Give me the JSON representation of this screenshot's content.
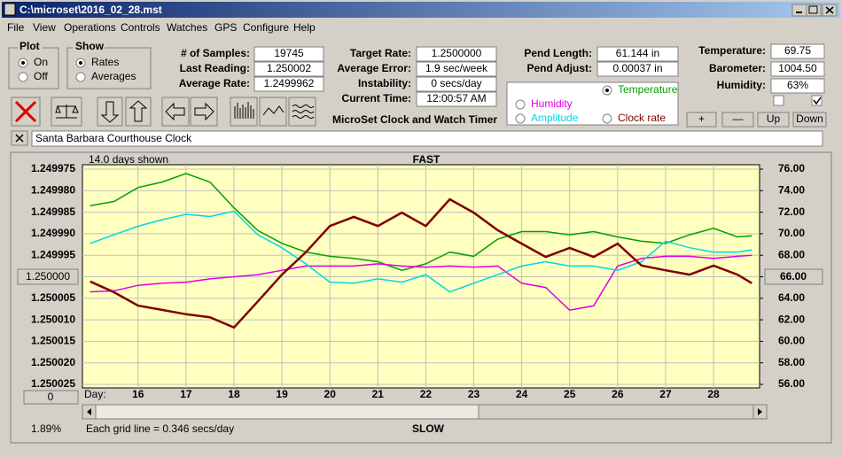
{
  "window": {
    "title": "C:\\microset\\2016_02_28.mst"
  },
  "menu": [
    "File",
    "View",
    "Operations",
    "Controls",
    "Watches",
    "GPS",
    "Configure",
    "Help"
  ],
  "plot_group": {
    "title": "Plot",
    "options": [
      "On",
      "Off"
    ],
    "selected": 0
  },
  "show_group": {
    "title": "Show",
    "options": [
      "Rates",
      "Averages"
    ],
    "selected": 0
  },
  "fields": [
    {
      "label": "# of Samples:",
      "value": "19745"
    },
    {
      "label": "Last Reading:",
      "value": "1.250002"
    },
    {
      "label": "Average Rate:",
      "value": "1.2499962"
    },
    {
      "label": "Target Rate:",
      "value": "1.2500000"
    },
    {
      "label": "Average Error:",
      "value": "1.9 sec/week"
    },
    {
      "label": "Instability:",
      "value": "0 secs/day"
    },
    {
      "label": "Current Time:",
      "value": "12:00:57 AM"
    },
    {
      "label": "Pend Length:",
      "value": "61.144 in"
    },
    {
      "label": "Pend Adjust:",
      "value": "0.00037 in"
    },
    {
      "label": "Temperature:",
      "value": "69.75"
    },
    {
      "label": "Barometer:",
      "value": "1004.50"
    },
    {
      "label": "Humidity:",
      "value": "63%"
    }
  ],
  "app_title": "MicroSet Clock and Watch Timer",
  "buttons": [
    "+",
    "—",
    "Up",
    "Down"
  ],
  "clock_name": "Santa Barbara Courthouse Clock",
  "chart_data": {
    "type": "line",
    "days_shown": "14.0 days shown",
    "top_label": "FAST",
    "bottom_label": "SLOW",
    "x_label": "Day:",
    "grid_note": "Each grid line = 0.346 secs/day",
    "status": "1.89%",
    "offset_button": "0",
    "rate_button": "1.250000",
    "temp_button": "66.00",
    "grid": true,
    "background": "#ffffc0",
    "selected_series": 1,
    "xlim": [
      14.84,
      28.96
    ],
    "xticks": [
      16,
      17,
      18,
      19,
      20,
      21,
      22,
      23,
      24,
      25,
      26,
      27,
      28
    ],
    "ylim": [
      1.249975,
      1.250025
    ],
    "y_inverted": true,
    "yticks": [
      {
        "value": 1.249975,
        "label": "1.249975"
      },
      {
        "value": 1.24998,
        "label": "1.249980"
      },
      {
        "value": 1.249985,
        "label": "1.249985"
      },
      {
        "value": 1.24999,
        "label": "1.249990"
      },
      {
        "value": 1.249995,
        "label": "1.249995"
      },
      {
        "value": 1.25,
        "label": "1.250000"
      },
      {
        "value": 1.250005,
        "label": "1.250005"
      },
      {
        "value": 1.25001,
        "label": "1.250010"
      },
      {
        "value": 1.250015,
        "label": "1.250015"
      },
      {
        "value": 1.25002,
        "label": "1.250020"
      },
      {
        "value": 1.250025,
        "label": "1.250025"
      }
    ],
    "y2lim": [
      56,
      76
    ],
    "y2ticks": [
      {
        "value": 76,
        "label": "76.00"
      },
      {
        "value": 74,
        "label": "74.00"
      },
      {
        "value": 72,
        "label": "72.00"
      },
      {
        "value": 70,
        "label": "70.00"
      },
      {
        "value": 68,
        "label": "68.00"
      },
      {
        "value": 66,
        "label": "66.00"
      },
      {
        "value": 64,
        "label": "64.00"
      },
      {
        "value": 62,
        "label": "62.00"
      },
      {
        "value": 60,
        "label": "60.00"
      },
      {
        "value": 58,
        "label": "58.00"
      },
      {
        "value": 56,
        "label": "56.00"
      }
    ],
    "x": [
      15,
      15.5,
      16,
      16.5,
      17,
      17.5,
      18,
      18.5,
      19,
      19.5,
      20,
      20.5,
      21,
      21.5,
      22,
      22.5,
      23,
      23.5,
      24,
      24.5,
      25,
      25.5,
      26,
      26.5,
      27,
      27.5,
      28,
      28.5,
      28.8
    ],
    "series": [
      {
        "name": "Clock rate",
        "color": "#800000",
        "axis": "y",
        "values": [
          1.2500011,
          1.2500036,
          1.2500067,
          1.2500077,
          1.2500087,
          1.2500094,
          1.2500118,
          1.2500057,
          1.2499995,
          1.2499943,
          1.2499882,
          1.2499861,
          1.2499882,
          1.2499851,
          1.2499882,
          1.249982,
          1.2499851,
          1.2499892,
          1.2499923,
          1.2499954,
          1.2499933,
          1.2499954,
          1.2499923,
          1.2499974,
          1.2499985,
          1.2499995,
          1.2499974,
          1.2499995,
          1.2500015
        ]
      },
      {
        "name": "Temperature",
        "color": "#00a000",
        "axis": "y2",
        "values": [
          72.6,
          73.0,
          74.3,
          74.8,
          75.6,
          74.8,
          72.4,
          70.3,
          69.1,
          68.3,
          67.9,
          67.7,
          67.4,
          66.6,
          67.2,
          68.3,
          67.9,
          69.5,
          70.2,
          70.2,
          69.9,
          70.2,
          69.7,
          69.3,
          69.1,
          69.9,
          70.5,
          69.7,
          69.8
        ]
      },
      {
        "name": "Humidity",
        "color": "#e000e0",
        "axis": "y2",
        "values": [
          64.6,
          64.7,
          65.2,
          65.4,
          65.5,
          65.8,
          66.0,
          66.2,
          66.6,
          67.0,
          67.0,
          67.0,
          67.2,
          67.0,
          66.9,
          67.0,
          66.9,
          67.0,
          65.4,
          65.0,
          62.9,
          63.3,
          67.0,
          67.7,
          67.9,
          67.9,
          67.7,
          67.9,
          68.0
        ]
      },
      {
        "name": "Amplitude",
        "color": "#00d8e8",
        "axis": "y2",
        "values": [
          69.1,
          69.9,
          70.7,
          71.3,
          71.8,
          71.6,
          72.1,
          69.9,
          68.7,
          67.2,
          65.5,
          65.4,
          65.8,
          65.5,
          66.2,
          64.6,
          65.4,
          66.2,
          67.0,
          67.4,
          67.0,
          67.0,
          66.6,
          67.4,
          69.3,
          68.7,
          68.3,
          68.3,
          68.5
        ]
      }
    ]
  }
}
